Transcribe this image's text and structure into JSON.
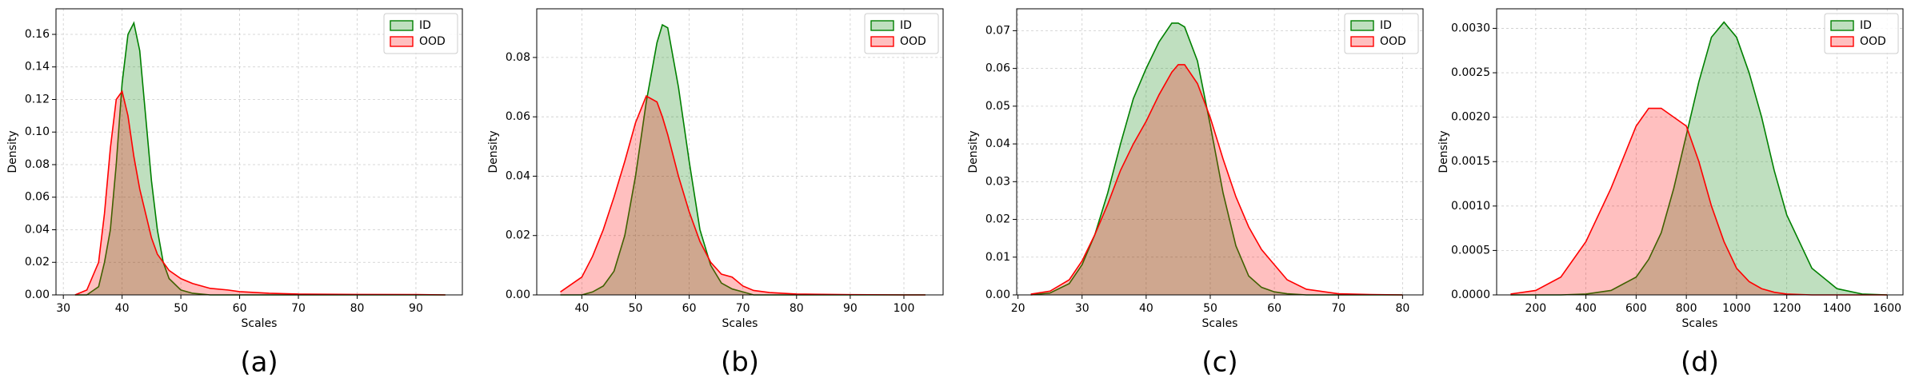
{
  "chart_data": [
    {
      "type": "area",
      "caption": "(a)",
      "xlabel": "Scales",
      "ylabel": "Density",
      "x": [
        32,
        34,
        36,
        37,
        38,
        39,
        40,
        41,
        42,
        43,
        44,
        45,
        46,
        47,
        48,
        50,
        52,
        55,
        58,
        60,
        65,
        70,
        80,
        90,
        95
      ],
      "series": [
        {
          "name": "ID",
          "color": "green",
          "values": [
            0,
            0,
            0.005,
            0.02,
            0.04,
            0.08,
            0.13,
            0.16,
            0.167,
            0.15,
            0.11,
            0.07,
            0.04,
            0.02,
            0.01,
            0.003,
            0.001,
            0,
            0,
            0,
            0,
            0,
            0,
            0,
            0
          ]
        },
        {
          "name": "OOD",
          "color": "red",
          "values": [
            0,
            0.003,
            0.02,
            0.05,
            0.09,
            0.12,
            0.125,
            0.11,
            0.085,
            0.065,
            0.05,
            0.035,
            0.025,
            0.02,
            0.015,
            0.01,
            0.007,
            0.004,
            0.003,
            0.002,
            0.001,
            0.0005,
            0.0003,
            0.0002,
            0
          ]
        }
      ],
      "xlim": [
        28.75,
        97.9
      ],
      "ylim": [
        0,
        0.1757
      ],
      "xticks": [
        30,
        40,
        50,
        60,
        70,
        80,
        90
      ],
      "yticks": [
        {
          "value": 0,
          "label": "0.00"
        },
        {
          "value": 0.02,
          "label": "0.02"
        },
        {
          "value": 0.04,
          "label": "0.04"
        },
        {
          "value": 0.06,
          "label": "0.06"
        },
        {
          "value": 0.08,
          "label": "0.08"
        },
        {
          "value": 0.1,
          "label": "0.10"
        },
        {
          "value": 0.12,
          "label": "0.12"
        },
        {
          "value": 0.14,
          "label": "0.14"
        },
        {
          "value": 0.16,
          "label": "0.16"
        }
      ],
      "grid": true,
      "legend": "upper right"
    },
    {
      "type": "area",
      "caption": "(b)",
      "xlabel": "Scales",
      "ylabel": "Density",
      "x": [
        36,
        40,
        42,
        44,
        46,
        48,
        50,
        52,
        54,
        55,
        56,
        58,
        60,
        62,
        64,
        66,
        68,
        70,
        72,
        75,
        80,
        90,
        100,
        104
      ],
      "series": [
        {
          "name": "ID",
          "color": "green",
          "values": [
            0,
            0,
            0.001,
            0.003,
            0.008,
            0.02,
            0.04,
            0.065,
            0.085,
            0.091,
            0.09,
            0.07,
            0.045,
            0.022,
            0.01,
            0.004,
            0.002,
            0.001,
            0,
            0,
            0,
            0,
            0,
            0
          ]
        },
        {
          "name": "OOD",
          "color": "red",
          "values": [
            0.001,
            0.006,
            0.013,
            0.022,
            0.033,
            0.045,
            0.058,
            0.067,
            0.065,
            0.06,
            0.054,
            0.04,
            0.028,
            0.018,
            0.011,
            0.007,
            0.006,
            0.003,
            0.0015,
            0.0008,
            0.0003,
            0.0001,
            0,
            0
          ]
        }
      ],
      "xlim": [
        31.6,
        107.3
      ],
      "ylim": [
        0,
        0.0964
      ],
      "xticks": [
        40,
        50,
        60,
        70,
        80,
        90,
        100
      ],
      "yticks": [
        {
          "value": 0,
          "label": "0.00"
        },
        {
          "value": 0.02,
          "label": "0.02"
        },
        {
          "value": 0.04,
          "label": "0.04"
        },
        {
          "value": 0.06,
          "label": "0.06"
        },
        {
          "value": 0.08,
          "label": "0.08"
        }
      ],
      "grid": true,
      "legend": "upper right"
    },
    {
      "type": "area",
      "caption": "(c)",
      "xlabel": "Scales",
      "ylabel": "Density",
      "x": [
        22,
        25,
        28,
        30,
        32,
        34,
        36,
        38,
        40,
        42,
        44,
        45,
        46,
        48,
        50,
        52,
        54,
        56,
        58,
        60,
        62,
        65,
        70,
        75,
        80
      ],
      "series": [
        {
          "name": "ID",
          "color": "green",
          "values": [
            0,
            0.0005,
            0.003,
            0.008,
            0.016,
            0.027,
            0.04,
            0.052,
            0.06,
            0.067,
            0.072,
            0.072,
            0.071,
            0.062,
            0.045,
            0.027,
            0.013,
            0.005,
            0.002,
            0.0008,
            0.0003,
            0,
            0,
            0,
            0
          ]
        },
        {
          "name": "OOD",
          "color": "red",
          "values": [
            0.0002,
            0.001,
            0.004,
            0.009,
            0.016,
            0.024,
            0.033,
            0.04,
            0.046,
            0.053,
            0.059,
            0.061,
            0.061,
            0.056,
            0.047,
            0.036,
            0.026,
            0.018,
            0.012,
            0.008,
            0.004,
            0.0015,
            0.0003,
            0.0001,
            0
          ]
        }
      ],
      "xlim": [
        19.8,
        83.2
      ],
      "ylim": [
        0,
        0.0758
      ],
      "xticks": [
        20,
        30,
        40,
        50,
        60,
        70,
        80
      ],
      "yticks": [
        {
          "value": 0,
          "label": "0.00"
        },
        {
          "value": 0.01,
          "label": "0.01"
        },
        {
          "value": 0.02,
          "label": "0.02"
        },
        {
          "value": 0.03,
          "label": "0.03"
        },
        {
          "value": 0.04,
          "label": "0.04"
        },
        {
          "value": 0.05,
          "label": "0.05"
        },
        {
          "value": 0.06,
          "label": "0.06"
        },
        {
          "value": 0.07,
          "label": "0.07"
        }
      ],
      "grid": true,
      "legend": "upper right"
    },
    {
      "type": "area",
      "caption": "(d)",
      "xlabel": "Scales",
      "ylabel": "Density",
      "x": [
        100,
        200,
        300,
        400,
        500,
        600,
        650,
        700,
        750,
        800,
        850,
        900,
        950,
        1000,
        1050,
        1100,
        1150,
        1200,
        1300,
        1400,
        1500,
        1600
      ],
      "series": [
        {
          "name": "ID",
          "color": "green",
          "values": [
            0,
            0,
            0,
            1e-05,
            5e-05,
            0.0002,
            0.0004,
            0.0007,
            0.0012,
            0.0018,
            0.0024,
            0.0029,
            0.00307,
            0.0029,
            0.0025,
            0.002,
            0.0014,
            0.0009,
            0.0003,
            7e-05,
            1e-05,
            0
          ]
        },
        {
          "name": "OOD",
          "color": "red",
          "values": [
            1e-05,
            5e-05,
            0.0002,
            0.0006,
            0.0012,
            0.0019,
            0.0021,
            0.0021,
            0.002,
            0.0019,
            0.0015,
            0.001,
            0.0006,
            0.0003,
            0.00015,
            7e-05,
            3e-05,
            1e-05,
            0,
            0,
            0,
            0
          ]
        }
      ],
      "xlim": [
        44.4,
        1663
      ],
      "ylim": [
        0,
        0.00322
      ],
      "xticks": [
        200,
        400,
        600,
        800,
        1000,
        1200,
        1400,
        1600
      ],
      "yticks": [
        {
          "value": 0,
          "label": "0.0000"
        },
        {
          "value": 0.0005,
          "label": "0.0005"
        },
        {
          "value": 0.001,
          "label": "0.0010"
        },
        {
          "value": 0.0015,
          "label": "0.0015"
        },
        {
          "value": 0.002,
          "label": "0.0020"
        },
        {
          "value": 0.0025,
          "label": "0.0025"
        },
        {
          "value": 0.003,
          "label": "0.0030"
        }
      ],
      "grid": true,
      "legend": "upper right"
    }
  ]
}
